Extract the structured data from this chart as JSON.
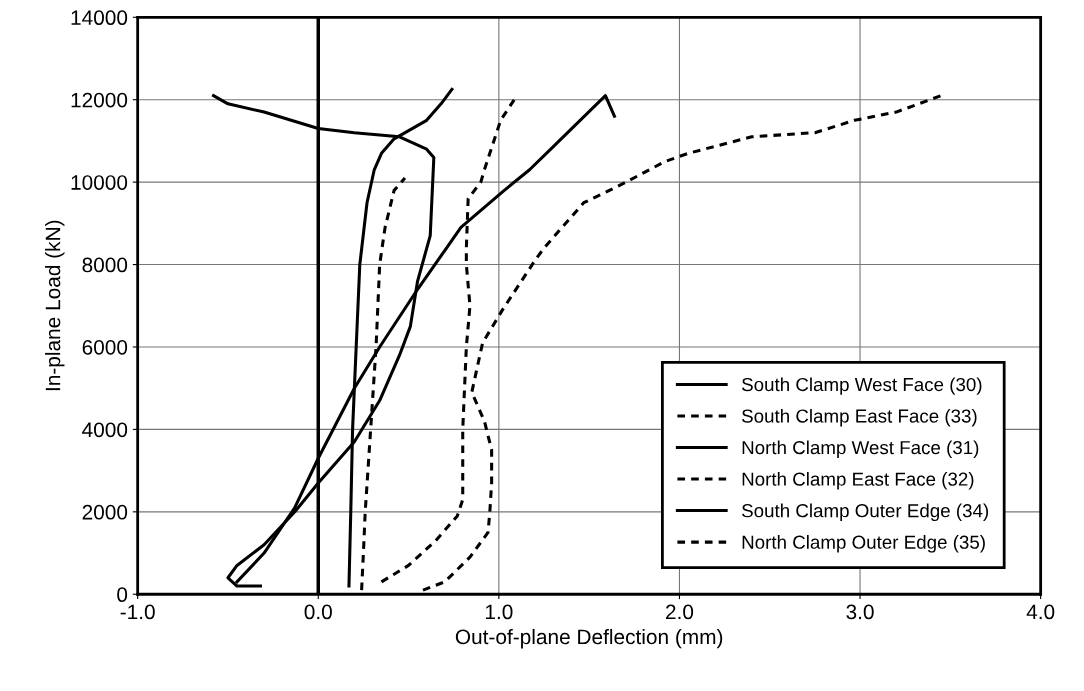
{
  "chart_data": {
    "type": "line",
    "xlabel": "Out-of-plane Deflection (mm)",
    "ylabel": "In-plane Load (kN)",
    "xlim": [
      -1.0,
      4.0
    ],
    "xticks": [
      {
        "value": -1.0,
        "label": "-1.0"
      },
      {
        "value": 0,
        "label": "0.0"
      },
      {
        "value": 1.0,
        "label": "1.0"
      },
      {
        "value": 2.0,
        "label": "2.0"
      },
      {
        "value": 3.0,
        "label": "3.0"
      },
      {
        "value": 4.0,
        "label": "4.0"
      }
    ],
    "ylim": [
      0,
      14000
    ],
    "yticks": [
      0,
      2000,
      4000,
      6000,
      8000,
      10000,
      12000,
      14000
    ],
    "grid": true,
    "legend": "bottom right",
    "ref_lines": [
      {
        "axis": "x",
        "value": 0,
        "color": "#000000"
      }
    ],
    "series": [
      {
        "name": "South Clamp West Face (30)",
        "color": "#000000",
        "line_style": "solid",
        "x": [
          0.17,
          0.18,
          0.19,
          0.21,
          0.23,
          0.27,
          0.31,
          0.35,
          0.42,
          0.52,
          0.6,
          0.68,
          0.74
        ],
        "values": [
          200,
          2000,
          4000,
          6000,
          8000,
          9500,
          10300,
          10700,
          11050,
          11300,
          11500,
          11900,
          12250
        ]
      },
      {
        "name": "South Clamp East Face (33)",
        "color": "#000000",
        "line_style": "dashed",
        "x": [
          0.24,
          0.25,
          0.26,
          0.29,
          0.32,
          0.34,
          0.37,
          0.42,
          0.48
        ],
        "values": [
          100,
          1000,
          2000,
          4000,
          6000,
          8000,
          8900,
          9800,
          10100
        ]
      },
      {
        "name": "North Clamp West Face (31)",
        "color": "#000000",
        "line_style": "solid",
        "x": [
          -0.32,
          -0.45,
          -0.5,
          -0.45,
          -0.3,
          -0.13,
          0.0,
          0.2,
          0.34,
          0.45,
          0.51,
          0.55,
          0.62,
          0.64,
          0.6,
          0.45,
          0.2,
          0.0,
          -0.3,
          -0.5,
          -0.58
        ],
        "values": [
          200,
          200,
          400,
          700,
          1200,
          2000,
          2700,
          3700,
          4700,
          5800,
          6500,
          7600,
          8700,
          10600,
          10800,
          11100,
          11200,
          11300,
          11700,
          11900,
          12100
        ]
      },
      {
        "name": "North Clamp East Face (32)",
        "color": "#000000",
        "line_style": "dashed",
        "x": [
          0.35,
          0.5,
          0.65,
          0.77,
          0.8,
          0.8,
          0.8,
          0.81,
          0.82,
          0.84,
          0.82,
          0.82,
          0.83,
          0.9,
          0.92,
          1.01,
          1.1
        ],
        "values": [
          300,
          700,
          1300,
          1900,
          2300,
          3000,
          4000,
          5000,
          6000,
          7000,
          8000,
          8400,
          9600,
          10000,
          10300,
          11500,
          12100
        ]
      },
      {
        "name": "South Clamp Outer Edge (34)",
        "color": "#000000",
        "line_style": "solid",
        "x": [
          -0.45,
          -0.3,
          -0.13,
          0.0,
          0.2,
          0.34,
          0.55,
          0.71,
          0.79,
          1.03,
          1.17,
          1.31,
          1.45,
          1.59,
          1.64
        ],
        "values": [
          300,
          1000,
          2100,
          3300,
          5000,
          6000,
          7400,
          8400,
          8900,
          9800,
          10300,
          10900,
          11500,
          12100,
          11600
        ]
      },
      {
        "name": "North Clamp Outer Edge (35)",
        "color": "#000000",
        "line_style": "dashed",
        "x": [
          0.58,
          0.7,
          0.84,
          0.94,
          0.95,
          0.96,
          0.96,
          0.92,
          0.85,
          0.91,
          1.02,
          1.2,
          1.25,
          1.47,
          1.66,
          1.92,
          2.05,
          2.4,
          2.75,
          2.97,
          3.2,
          3.45
        ],
        "values": [
          100,
          300,
          900,
          1500,
          2000,
          2700,
          3500,
          4200,
          4900,
          6100,
          6900,
          8100,
          8400,
          9500,
          9900,
          10500,
          10700,
          11100,
          11200,
          11500,
          11700,
          12100
        ]
      }
    ]
  }
}
